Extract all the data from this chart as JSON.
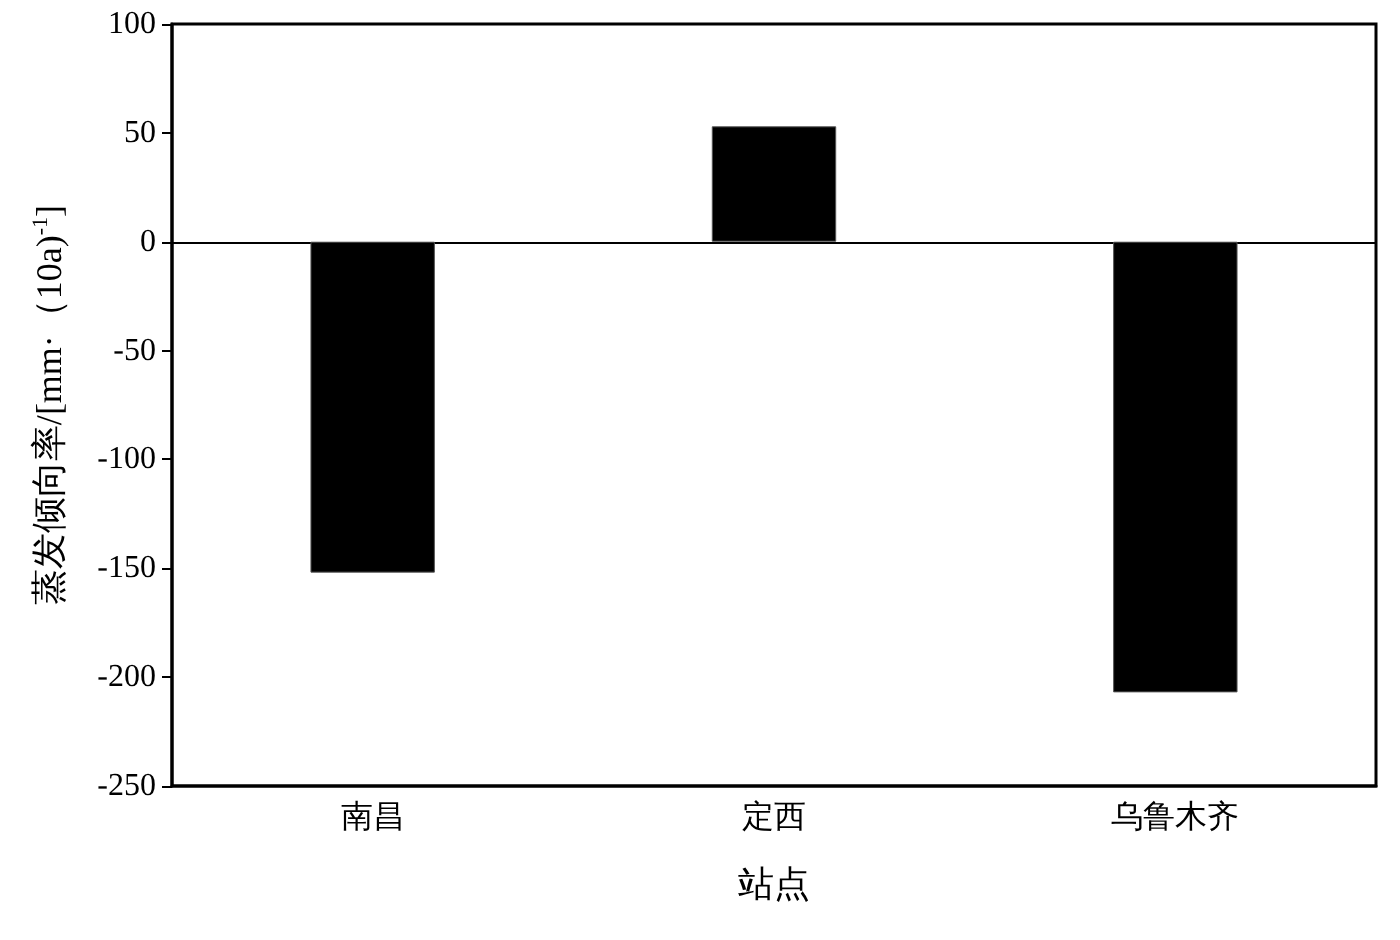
{
  "chart_data": {
    "type": "bar",
    "xlabel": "站点",
    "ylabel": "蒸发倾向率/[mm·（10a)$^{-1}$]",
    "categories": [
      "南昌",
      "定西",
      "乌鲁木齐"
    ],
    "values": [
      -152,
      53,
      -207
    ],
    "color": "#000000",
    "ylim": [
      -250,
      100
    ],
    "yticks": [
      -250,
      -200,
      -150,
      -100,
      -50,
      0,
      50,
      100
    ]
  }
}
